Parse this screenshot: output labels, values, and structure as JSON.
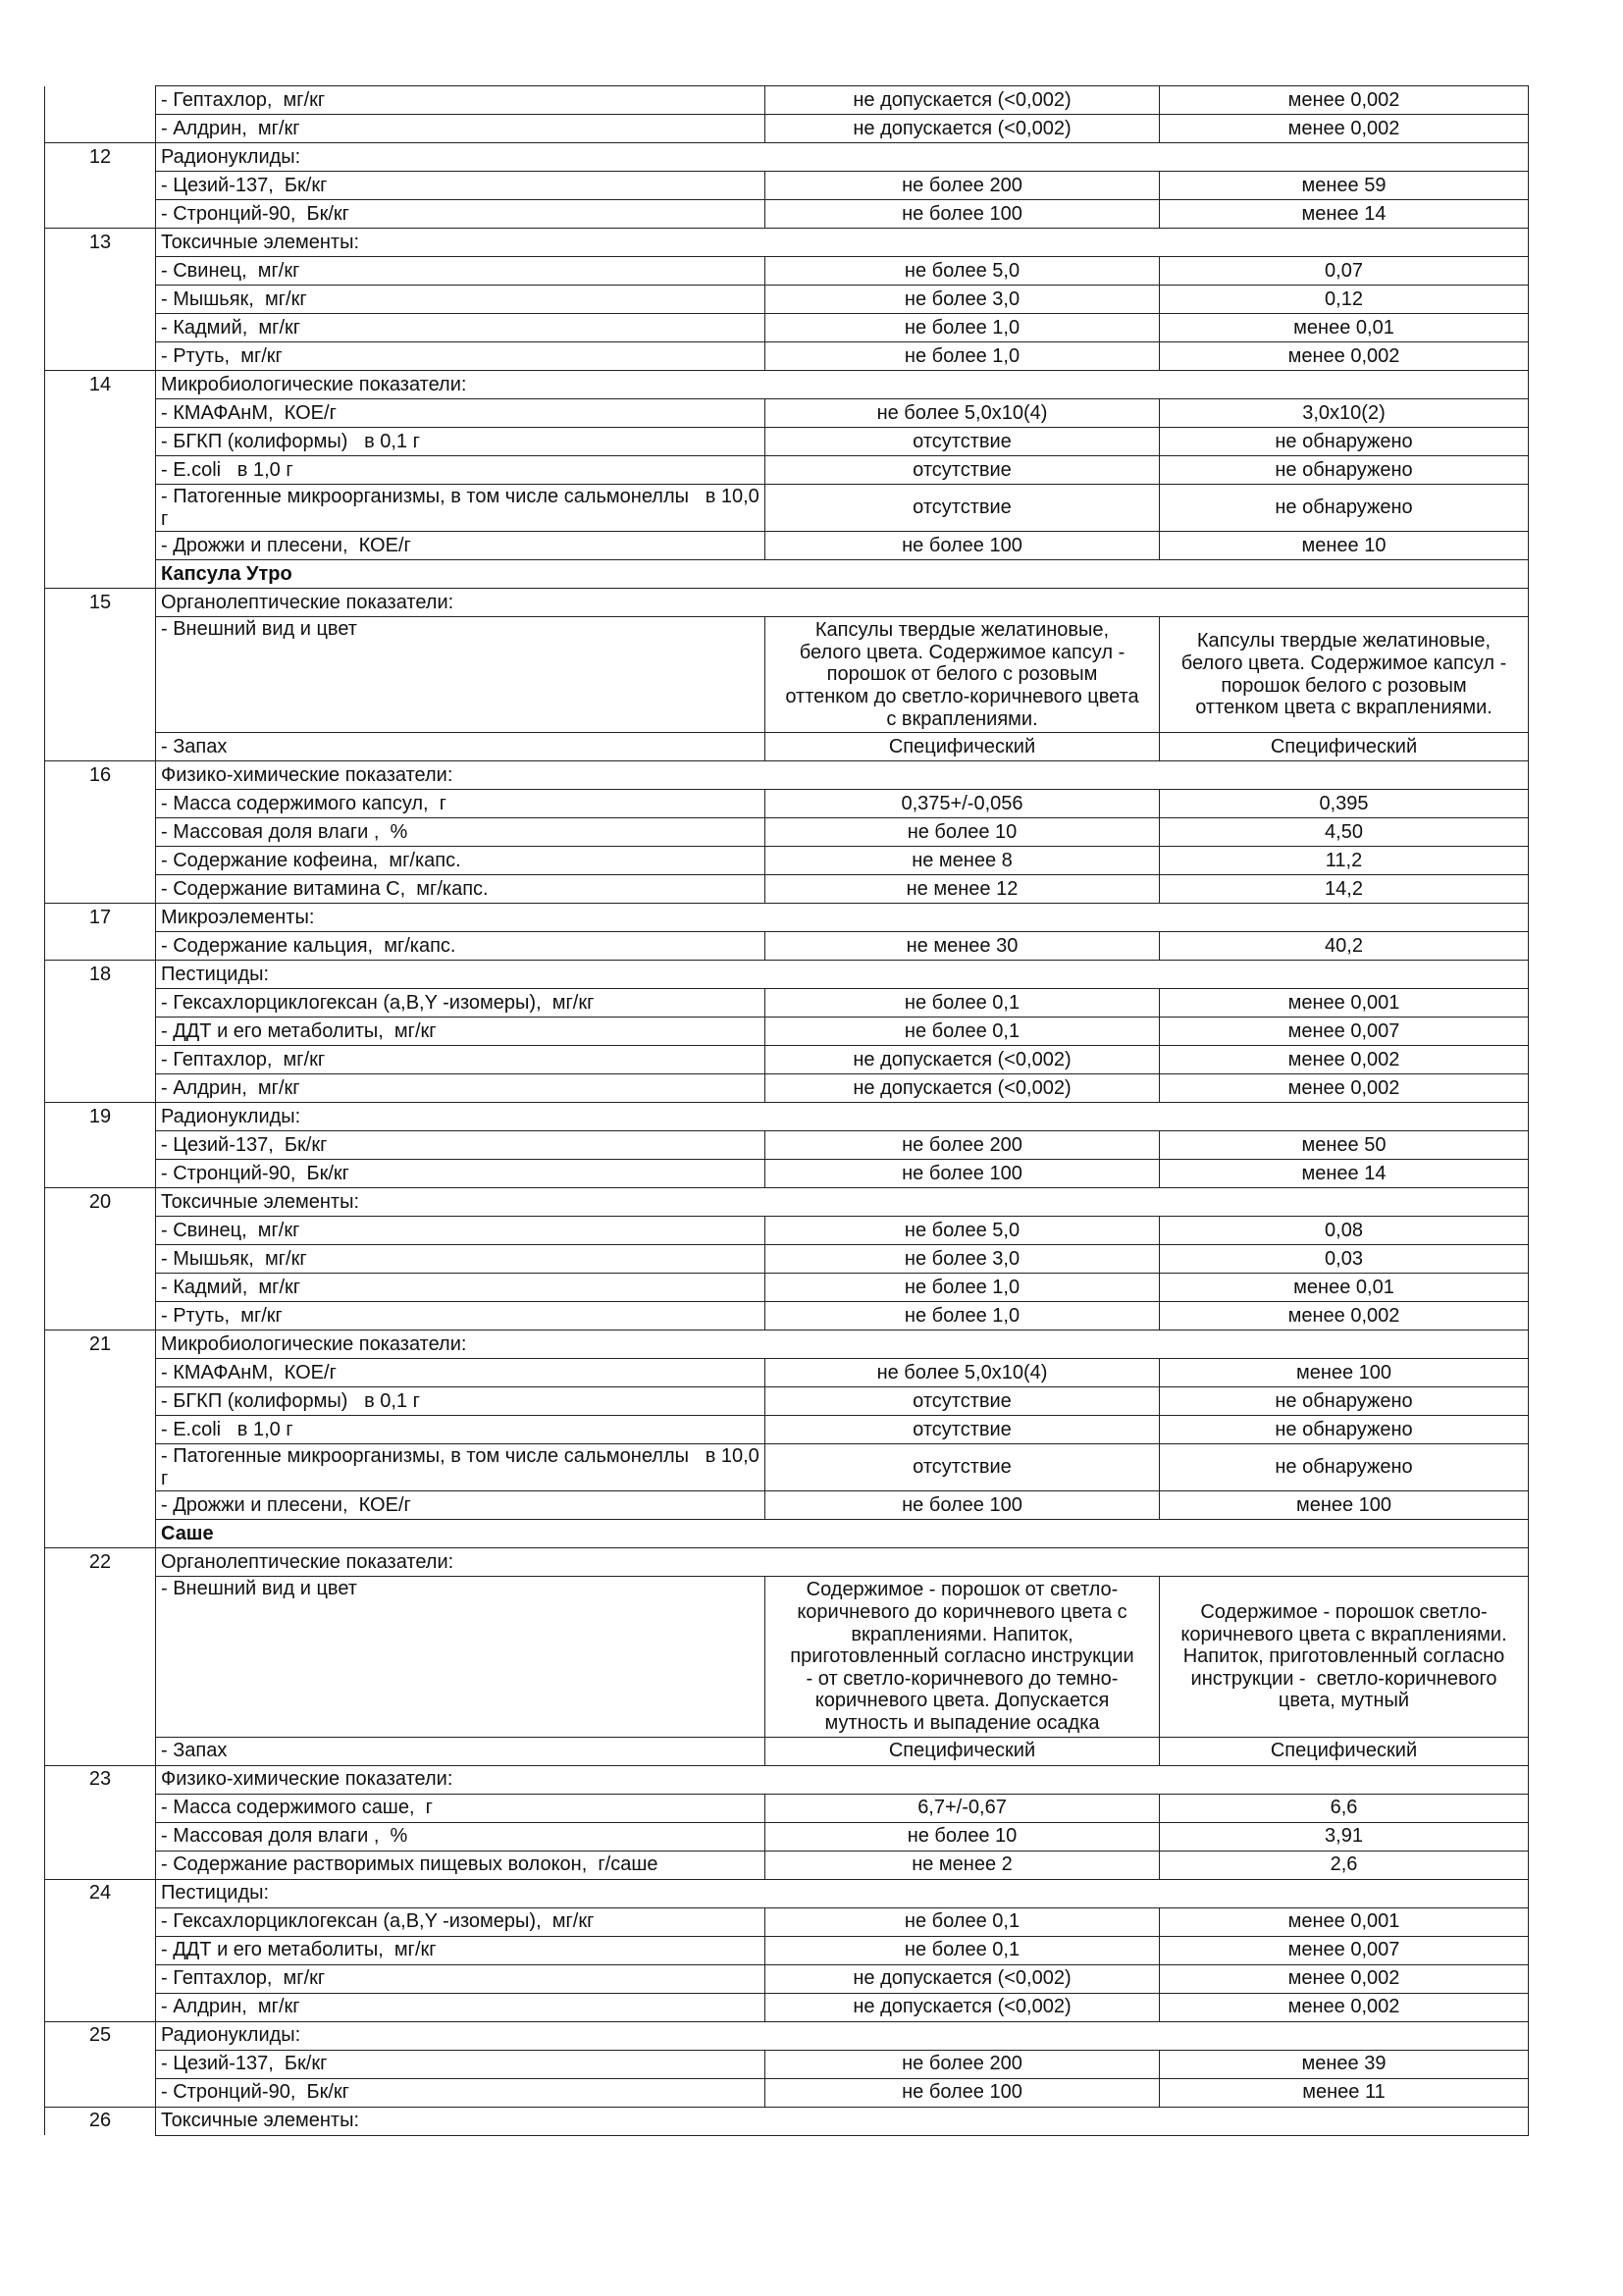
{
  "table": {
    "rows": [
      {
        "name": "- Гептахлор,  мг/кг",
        "norm": "не допускается (<0,002)",
        "result": "менее 0,002"
      },
      {
        "name": "- Алдрин,  мг/кг",
        "norm": "не допускается (<0,002)",
        "result": "менее 0,002"
      },
      {
        "num": "12",
        "label": "Радионуклиды:"
      },
      {
        "name": "- Цезий-137,  Бк/кг",
        "norm": "не более 200",
        "result": "менее 59"
      },
      {
        "name": "- Стронций-90,  Бк/кг",
        "norm": "не более 100",
        "result": "менее 14"
      },
      {
        "num": "13",
        "label": "Токсичные элементы:"
      },
      {
        "name": "- Свинец,  мг/кг",
        "norm": "не более 5,0",
        "result": "0,07"
      },
      {
        "name": "- Мышьяк,  мг/кг",
        "norm": "не более 3,0",
        "result": "0,12"
      },
      {
        "name": "- Кадмий,  мг/кг",
        "norm": "не более 1,0",
        "result": "менее 0,01"
      },
      {
        "name": "- Ртуть,  мг/кг",
        "norm": "не более 1,0",
        "result": "менее 0,002"
      },
      {
        "num": "14",
        "label": "Микробиологические показатели:"
      },
      {
        "name": "- КМАФАнМ,  КОЕ/г",
        "norm": "не более 5,0х10(4)",
        "result": "3,0х10(2)"
      },
      {
        "name": "- БГКП (колиформы)   в 0,1 г",
        "norm": "отсутствие",
        "result": "не обнаружено"
      },
      {
        "name": "- E.coli   в 1,0 г",
        "norm": "отсутствие",
        "result": "не обнаружено"
      },
      {
        "name": "- Патогенные микроорганизмы, в том числе сальмонеллы   в 10,0 г",
        "norm": "отсутствие",
        "result": "не обнаружено"
      },
      {
        "name": "- Дрожжи и плесени,  КОЕ/г",
        "norm": "не более 100",
        "result": "менее 10"
      },
      {
        "title": "Капсула Утро"
      },
      {
        "num": "15",
        "label": "Органолептические показатели:"
      },
      {
        "name": "- Внешний вид и цвет",
        "norm": "Капсулы твердые желатиновые, белого цвета. Содержимое капсул - порошок от белого с розовым оттенком до светло-коричневого цвета с вкраплениями.",
        "result": "Капсулы твердые желатиновые, белого цвета. Содержимое капсул - порошок белого с розовым оттенком цвета с вкраплениями."
      },
      {
        "name": "- Запах",
        "norm": "Специфический",
        "result": "Специфический"
      },
      {
        "num": "16",
        "label": "Физико-химические показатели:"
      },
      {
        "name": "- Масса содержимого капсул,  г",
        "norm": "0,375+/-0,056",
        "result": "0,395"
      },
      {
        "name": "- Массовая доля влаги ,  %",
        "norm": "не более 10",
        "result": "4,50"
      },
      {
        "name": "- Содержание кофеина,  мг/капс.",
        "norm": "не менее 8",
        "result": "11,2"
      },
      {
        "name": "- Содержание витамина С,  мг/капс.",
        "norm": "не менее 12",
        "result": "14,2"
      },
      {
        "num": "17",
        "label": "Микроэлементы:"
      },
      {
        "name": "- Содержание кальция,  мг/капс.",
        "norm": "не менее 30",
        "result": "40,2"
      },
      {
        "num": "18",
        "label": "Пестициды:"
      },
      {
        "name": "- Гексахлорциклогексан (a,B,Y -изомеры),  мг/кг",
        "norm": "не более 0,1",
        "result": "менее 0,001"
      },
      {
        "name": "- ДДТ и его метаболиты,  мг/кг",
        "norm": "не более 0,1",
        "result": "менее 0,007"
      },
      {
        "name": "- Гептахлор,  мг/кг",
        "norm": "не допускается (<0,002)",
        "result": "менее 0,002"
      },
      {
        "name": "- Алдрин,  мг/кг",
        "norm": "не допускается (<0,002)",
        "result": "менее 0,002"
      },
      {
        "num": "19",
        "label": "Радионуклиды:"
      },
      {
        "name": "- Цезий-137,  Бк/кг",
        "norm": "не более 200",
        "result": "менее 50"
      },
      {
        "name": "- Стронций-90,  Бк/кг",
        "norm": "не более 100",
        "result": "менее 14"
      },
      {
        "num": "20",
        "label": "Токсичные элементы:"
      },
      {
        "name": "- Свинец,  мг/кг",
        "norm": "не более 5,0",
        "result": "0,08"
      },
      {
        "name": "- Мышьяк,  мг/кг",
        "norm": "не более 3,0",
        "result": "0,03"
      },
      {
        "name": "- Кадмий,  мг/кг",
        "norm": "не более 1,0",
        "result": "менее 0,01"
      },
      {
        "name": "- Ртуть,  мг/кг",
        "norm": "не более 1,0",
        "result": "менее 0,002"
      },
      {
        "num": "21",
        "label": "Микробиологические показатели:"
      },
      {
        "name": "- КМАФАнМ,  КОЕ/г",
        "norm": "не более 5,0х10(4)",
        "result": "менее 100"
      },
      {
        "name": "- БГКП (колиформы)   в 0,1 г",
        "norm": "отсутствие",
        "result": "не обнаружено"
      },
      {
        "name": "- E.coli   в 1,0 г",
        "norm": "отсутствие",
        "result": "не обнаружено"
      },
      {
        "name": "- Патогенные микроорганизмы, в том числе сальмонеллы   в 10,0 г",
        "norm": "отсутствие",
        "result": "не обнаружено"
      },
      {
        "name": "- Дрожжи и плесени,  КОЕ/г",
        "norm": "не более 100",
        "result": "менее 100"
      },
      {
        "title": "Саше"
      },
      {
        "num": "22",
        "label": "Органолептические показатели:"
      },
      {
        "name": "- Внешний вид и цвет",
        "norm": "Содержимое - порошок от светло-коричневого до коричневого цвета с вкраплениями. Напиток, приготовленный согласно инструкции - от светло-коричневого до темно-коричневого цвета. Допускается мутность и выпадение осадка",
        "result": "Содержимое - порошок светло-коричневого цвета с вкраплениями. Напиток, приготовленный согласно инструкции -  светло-коричневого цвета, мутный"
      },
      {
        "name": "- Запах",
        "norm": "Специфический",
        "result": "Специфический"
      },
      {
        "num": "23",
        "label": "Физико-химические показатели:"
      },
      {
        "name": "- Масса содержимого саше,  г",
        "norm": "6,7+/-0,67",
        "result": "6,6"
      },
      {
        "name": "- Массовая доля влаги ,  %",
        "norm": "не более 10",
        "result": "3,91"
      },
      {
        "name": "- Содержание растворимых пищевых волокон,  г/саше",
        "norm": "не менее 2",
        "result": "2,6"
      },
      {
        "num": "24",
        "label": "Пестициды:"
      },
      {
        "name": "- Гексахлорциклогексан (a,B,Y -изомеры),  мг/кг",
        "norm": "не более 0,1",
        "result": "менее 0,001"
      },
      {
        "name": "- ДДТ и его метаболиты,  мг/кг",
        "norm": "не более 0,1",
        "result": "менее 0,007"
      },
      {
        "name": "- Гептахлор,  мг/кг",
        "norm": "не допускается (<0,002)",
        "result": "менее 0,002"
      },
      {
        "name": "- Алдрин,  мг/кг",
        "norm": "не допускается (<0,002)",
        "result": "менее 0,002"
      },
      {
        "num": "25",
        "label": "Радионуклиды:"
      },
      {
        "name": "- Цезий-137,  Бк/кг",
        "norm": "не более 200",
        "result": "менее 39"
      },
      {
        "name": "- Стронций-90,  Бк/кг",
        "norm": "не более 100",
        "result": "менее 11"
      },
      {
        "num": "26",
        "label": "Токсичные элементы:"
      }
    ]
  }
}
